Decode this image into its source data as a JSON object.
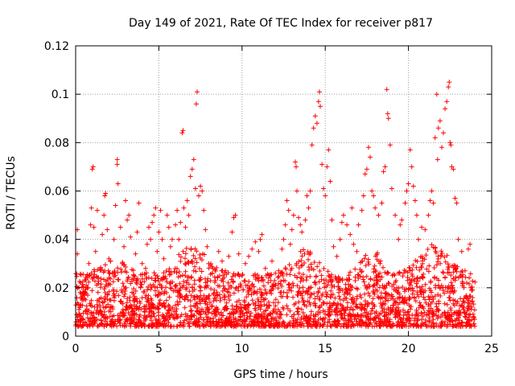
{
  "chart_data": {
    "type": "scatter",
    "title": "Day 149 of 2021, Rate Of TEC Index for receiver p817",
    "xlabel": "GPS time / hours",
    "ylabel": "ROTI / TECUs",
    "xlim": [
      0,
      25
    ],
    "ylim": [
      0,
      0.12
    ],
    "xticks": [
      0,
      5,
      10,
      15,
      20,
      25
    ],
    "xtick_labels": [
      "0",
      "5",
      "10",
      "15",
      "20",
      "25"
    ],
    "yticks": [
      0,
      0.02,
      0.04,
      0.06,
      0.08,
      0.1,
      0.12
    ],
    "ytick_labels": [
      "0",
      "0.02",
      "0.04",
      "0.06",
      "0.08",
      "0.1",
      "0.12"
    ],
    "grid": true,
    "marker": "plus",
    "color": "#ff0000",
    "series": [
      {
        "name": "p817",
        "points": [
          [
            0.1,
            0.034
          ],
          [
            0.1,
            0.044
          ],
          [
            0.15,
            0.013
          ],
          [
            0.2,
            0.009
          ],
          [
            0.3,
            0.022
          ],
          [
            0.45,
            0.018
          ],
          [
            0.6,
            0.015
          ],
          [
            0.75,
            0.02
          ],
          [
            0.8,
            0.03
          ],
          [
            0.9,
            0.046
          ],
          [
            0.95,
            0.053
          ],
          [
            1.0,
            0.069
          ],
          [
            1.05,
            0.07
          ],
          [
            1.1,
            0.045
          ],
          [
            1.2,
            0.035
          ],
          [
            1.3,
            0.052
          ],
          [
            1.5,
            0.028
          ],
          [
            1.6,
            0.042
          ],
          [
            1.7,
            0.05
          ],
          [
            1.75,
            0.058
          ],
          [
            1.8,
            0.059
          ],
          [
            1.9,
            0.044
          ],
          [
            2.0,
            0.032
          ],
          [
            2.1,
            0.031
          ],
          [
            2.2,
            0.026
          ],
          [
            2.3,
            0.04
          ],
          [
            2.4,
            0.054
          ],
          [
            2.5,
            0.071
          ],
          [
            2.5,
            0.073
          ],
          [
            2.55,
            0.063
          ],
          [
            2.7,
            0.045
          ],
          [
            2.8,
            0.03
          ],
          [
            2.9,
            0.037
          ],
          [
            3.0,
            0.056
          ],
          [
            3.1,
            0.048
          ],
          [
            3.2,
            0.05
          ],
          [
            3.3,
            0.041
          ],
          [
            3.5,
            0.025
          ],
          [
            3.6,
            0.034
          ],
          [
            3.7,
            0.043
          ],
          [
            3.8,
            0.055
          ],
          [
            3.9,
            0.02
          ],
          [
            4.0,
            0.03
          ],
          [
            4.2,
            0.028
          ],
          [
            4.3,
            0.038
          ],
          [
            4.4,
            0.045
          ],
          [
            4.5,
            0.04
          ],
          [
            4.6,
            0.047
          ],
          [
            4.7,
            0.05
          ],
          [
            4.8,
            0.053
          ],
          [
            4.9,
            0.035
          ],
          [
            5.0,
            0.043
          ],
          [
            5.1,
            0.052
          ],
          [
            5.2,
            0.04
          ],
          [
            5.3,
            0.032
          ],
          [
            5.5,
            0.05
          ],
          [
            5.6,
            0.045
          ],
          [
            5.7,
            0.037
          ],
          [
            5.8,
            0.04
          ],
          [
            6.0,
            0.046
          ],
          [
            6.1,
            0.052
          ],
          [
            6.2,
            0.04
          ],
          [
            6.3,
            0.047
          ],
          [
            6.4,
            0.084
          ],
          [
            6.45,
            0.085
          ],
          [
            6.5,
            0.053
          ],
          [
            6.6,
            0.045
          ],
          [
            6.7,
            0.056
          ],
          [
            6.8,
            0.05
          ],
          [
            6.9,
            0.066
          ],
          [
            7.0,
            0.069
          ],
          [
            7.1,
            0.073
          ],
          [
            7.2,
            0.061
          ],
          [
            7.25,
            0.096
          ],
          [
            7.3,
            0.101
          ],
          [
            7.4,
            0.058
          ],
          [
            7.5,
            0.062
          ],
          [
            7.6,
            0.06
          ],
          [
            7.7,
            0.052
          ],
          [
            7.8,
            0.044
          ],
          [
            7.9,
            0.037
          ],
          [
            8.0,
            0.03
          ],
          [
            8.2,
            0.026
          ],
          [
            8.4,
            0.023
          ],
          [
            8.6,
            0.035
          ],
          [
            8.8,
            0.031
          ],
          [
            9.0,
            0.027
          ],
          [
            9.2,
            0.033
          ],
          [
            9.4,
            0.043
          ],
          [
            9.5,
            0.049
          ],
          [
            9.6,
            0.05
          ],
          [
            9.8,
            0.034
          ],
          [
            10.0,
            0.025
          ],
          [
            10.2,
            0.03
          ],
          [
            10.4,
            0.033
          ],
          [
            10.6,
            0.036
          ],
          [
            10.8,
            0.039
          ],
          [
            11.0,
            0.035
          ],
          [
            11.1,
            0.04
          ],
          [
            11.2,
            0.042
          ],
          [
            11.4,
            0.028
          ],
          [
            11.6,
            0.024
          ],
          [
            11.8,
            0.031
          ],
          [
            12.0,
            0.026
          ],
          [
            12.2,
            0.027
          ],
          [
            12.4,
            0.036
          ],
          [
            12.5,
            0.04
          ],
          [
            12.6,
            0.046
          ],
          [
            12.7,
            0.056
          ],
          [
            12.8,
            0.052
          ],
          [
            12.9,
            0.038
          ],
          [
            13.0,
            0.044
          ],
          [
            13.1,
            0.05
          ],
          [
            13.2,
            0.072
          ],
          [
            13.25,
            0.07
          ],
          [
            13.3,
            0.06
          ],
          [
            13.4,
            0.049
          ],
          [
            13.5,
            0.046
          ],
          [
            13.6,
            0.043
          ],
          [
            13.8,
            0.048
          ],
          [
            13.9,
            0.058
          ],
          [
            14.0,
            0.053
          ],
          [
            14.1,
            0.06
          ],
          [
            14.2,
            0.079
          ],
          [
            14.3,
            0.086
          ],
          [
            14.4,
            0.091
          ],
          [
            14.5,
            0.088
          ],
          [
            14.6,
            0.097
          ],
          [
            14.65,
            0.101
          ],
          [
            14.7,
            0.095
          ],
          [
            14.8,
            0.071
          ],
          [
            14.9,
            0.061
          ],
          [
            15.0,
            0.058
          ],
          [
            15.1,
            0.07
          ],
          [
            15.2,
            0.077
          ],
          [
            15.3,
            0.064
          ],
          [
            15.4,
            0.048
          ],
          [
            15.5,
            0.037
          ],
          [
            15.7,
            0.033
          ],
          [
            15.9,
            0.04
          ],
          [
            16.0,
            0.047
          ],
          [
            16.1,
            0.05
          ],
          [
            16.3,
            0.046
          ],
          [
            16.5,
            0.042
          ],
          [
            16.6,
            0.053
          ],
          [
            16.7,
            0.038
          ],
          [
            16.9,
            0.035
          ],
          [
            17.0,
            0.046
          ],
          [
            17.2,
            0.052
          ],
          [
            17.3,
            0.058
          ],
          [
            17.4,
            0.067
          ],
          [
            17.5,
            0.069
          ],
          [
            17.6,
            0.078
          ],
          [
            17.7,
            0.074
          ],
          [
            17.8,
            0.06
          ],
          [
            17.9,
            0.058
          ],
          [
            18.0,
            0.053
          ],
          [
            18.2,
            0.05
          ],
          [
            18.4,
            0.055
          ],
          [
            18.5,
            0.068
          ],
          [
            18.6,
            0.07
          ],
          [
            18.7,
            0.102
          ],
          [
            18.75,
            0.092
          ],
          [
            18.8,
            0.09
          ],
          [
            18.9,
            0.079
          ],
          [
            19.0,
            0.061
          ],
          [
            19.2,
            0.05
          ],
          [
            19.4,
            0.04
          ],
          [
            19.5,
            0.046
          ],
          [
            19.6,
            0.048
          ],
          [
            19.8,
            0.055
          ],
          [
            19.9,
            0.06
          ],
          [
            20.0,
            0.063
          ],
          [
            20.1,
            0.077
          ],
          [
            20.2,
            0.07
          ],
          [
            20.3,
            0.062
          ],
          [
            20.4,
            0.056
          ],
          [
            20.5,
            0.05
          ],
          [
            20.6,
            0.04
          ],
          [
            20.8,
            0.045
          ],
          [
            21.0,
            0.044
          ],
          [
            21.2,
            0.05
          ],
          [
            21.3,
            0.056
          ],
          [
            21.4,
            0.06
          ],
          [
            21.5,
            0.055
          ],
          [
            21.6,
            0.082
          ],
          [
            21.7,
            0.1
          ],
          [
            21.75,
            0.073
          ],
          [
            21.8,
            0.086
          ],
          [
            21.9,
            0.089
          ],
          [
            22.0,
            0.078
          ],
          [
            22.1,
            0.084
          ],
          [
            22.2,
            0.094
          ],
          [
            22.3,
            0.097
          ],
          [
            22.4,
            0.103
          ],
          [
            22.45,
            0.105
          ],
          [
            22.5,
            0.08
          ],
          [
            22.55,
            0.079
          ],
          [
            22.6,
            0.07
          ],
          [
            22.7,
            0.069
          ],
          [
            22.8,
            0.057
          ],
          [
            22.9,
            0.055
          ],
          [
            23.0,
            0.04
          ],
          [
            23.2,
            0.035
          ],
          [
            23.4,
            0.027
          ],
          [
            23.5,
            0.022
          ],
          [
            23.6,
            0.036
          ],
          [
            23.7,
            0.038
          ],
          [
            23.8,
            0.012
          ],
          [
            23.9,
            0.008
          ]
        ]
      }
    ]
  }
}
